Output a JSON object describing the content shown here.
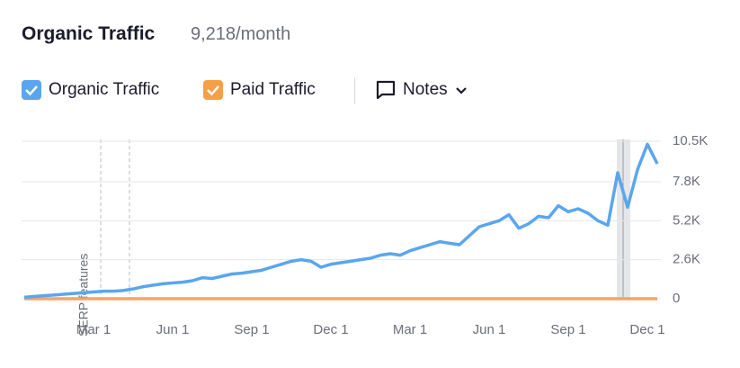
{
  "chart_data": {
    "type": "line",
    "title": "Organic Traffic",
    "subtitle": "9,218/month",
    "notes_label": "Notes",
    "annotation": "SERP features",
    "categories": [
      null,
      null,
      null,
      null,
      null,
      null,
      null,
      "Mar 1",
      null,
      null,
      null,
      null,
      null,
      null,
      null,
      "Jun 1",
      null,
      null,
      null,
      null,
      null,
      null,
      null,
      "Sep 1",
      null,
      null,
      null,
      null,
      null,
      null,
      null,
      "Dec 1",
      null,
      null,
      null,
      null,
      null,
      null,
      null,
      "Mar 1",
      null,
      null,
      null,
      null,
      null,
      null,
      null,
      "Jun 1",
      null,
      null,
      null,
      null,
      null,
      null,
      null,
      "Sep 1",
      null,
      null,
      null,
      null,
      null,
      null,
      null,
      "Dec 1",
      null
    ],
    "series": [
      {
        "name": "Organic Traffic",
        "color": "#5aa6ee",
        "values": [
          100,
          150,
          200,
          250,
          300,
          350,
          400,
          450,
          500,
          500,
          550,
          650,
          800,
          900,
          1000,
          1050,
          1100,
          1200,
          1400,
          1350,
          1500,
          1650,
          1700,
          1800,
          1900,
          2100,
          2300,
          2500,
          2600,
          2500,
          2100,
          2300,
          2400,
          2500,
          2600,
          2700,
          2900,
          3000,
          2900,
          3200,
          3400,
          3600,
          3800,
          3700,
          3600,
          4200,
          4800,
          5000,
          5200,
          5600,
          4700,
          5000,
          5500,
          5400,
          6200,
          5800,
          6000,
          5700,
          5200,
          4900,
          8400,
          6100,
          8600,
          10300,
          9000
        ]
      },
      {
        "name": "Paid Traffic",
        "color": "#f5a46b",
        "values": [
          0,
          0,
          0,
          0,
          0,
          0,
          0,
          0,
          0,
          0,
          0,
          0,
          0,
          0,
          0,
          0,
          0,
          0,
          0,
          0,
          0,
          0,
          0,
          0,
          0,
          0,
          0,
          0,
          0,
          0,
          0,
          0,
          0,
          0,
          0,
          0,
          0,
          0,
          0,
          0,
          0,
          0,
          0,
          0,
          0,
          0,
          0,
          0,
          0,
          0,
          0,
          0,
          0,
          0,
          0,
          0,
          0,
          0,
          0,
          0,
          0,
          0,
          0,
          0,
          0
        ]
      }
    ],
    "ylim": [
      0,
      10500
    ],
    "yticks": [
      0,
      {
        "value": 2600,
        "label": "2.6K"
      },
      {
        "value": 5200,
        "label": "5.2K"
      },
      {
        "value": 7800,
        "label": "7.8K"
      },
      {
        "value": 10500,
        "label": "10.5K"
      }
    ],
    "grid": true
  }
}
